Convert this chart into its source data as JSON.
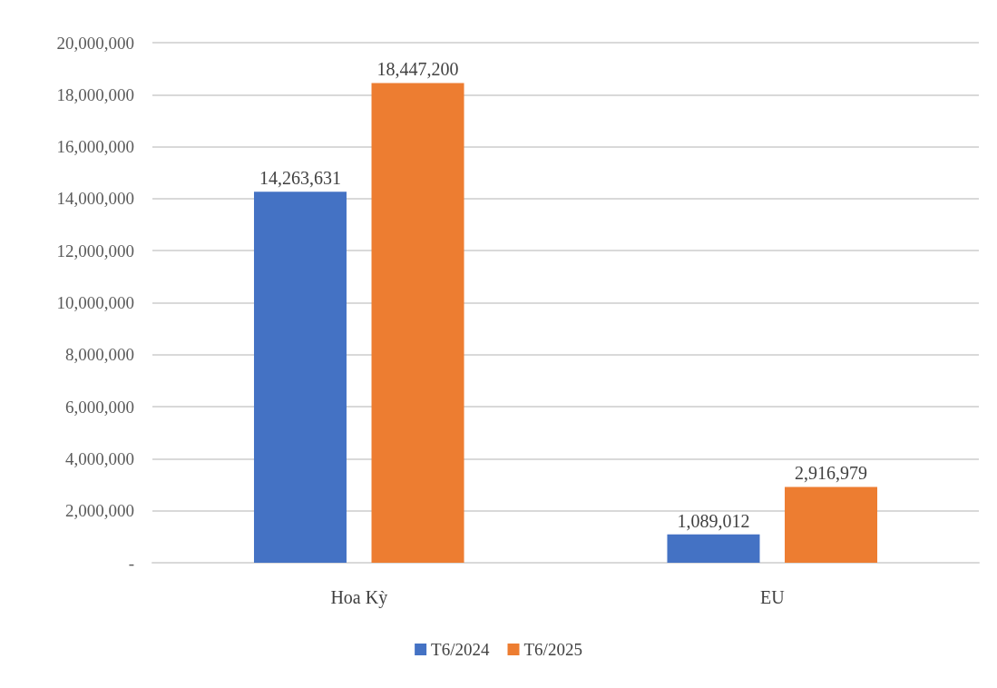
{
  "chart_data": {
    "type": "bar",
    "categories": [
      "Hoa Kỳ",
      "EU"
    ],
    "series": [
      {
        "name": "T6/2024",
        "color": "#4472c4",
        "values": [
          14263631,
          1089012
        ],
        "value_labels": [
          "14,263,631",
          "1,089,012"
        ]
      },
      {
        "name": "T6/2025",
        "color": "#ed7d31",
        "values": [
          18447200,
          2916979
        ],
        "value_labels": [
          "18,447,200",
          "2,916,979"
        ]
      }
    ],
    "ylim": [
      0,
      20000000
    ],
    "yticks": [
      {
        "value": 0,
        "label": "-"
      },
      {
        "value": 2000000,
        "label": "2,000,000"
      },
      {
        "value": 4000000,
        "label": "4,000,000"
      },
      {
        "value": 6000000,
        "label": "6,000,000"
      },
      {
        "value": 8000000,
        "label": "8,000,000"
      },
      {
        "value": 10000000,
        "label": "10,000,000"
      },
      {
        "value": 12000000,
        "label": "12,000,000"
      },
      {
        "value": 14000000,
        "label": "14,000,000"
      },
      {
        "value": 16000000,
        "label": "16,000,000"
      },
      {
        "value": 18000000,
        "label": "18,000,000"
      },
      {
        "value": 20000000,
        "label": "20,000,000"
      }
    ],
    "grid": true,
    "legend": "bottom"
  }
}
